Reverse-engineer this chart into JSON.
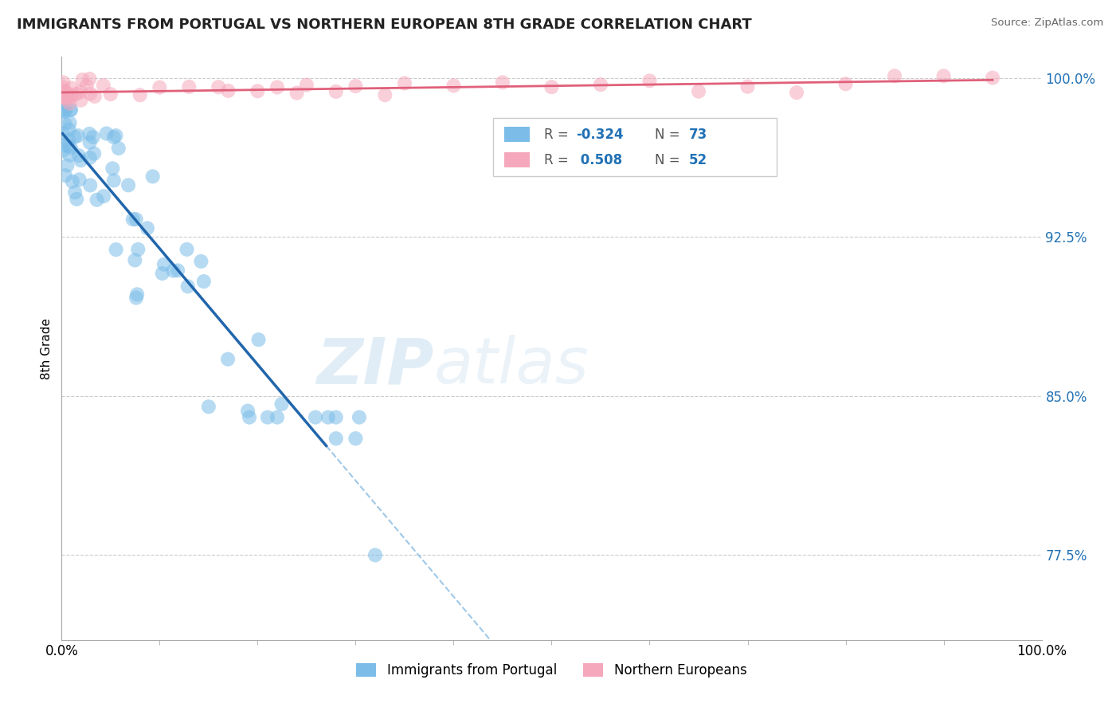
{
  "title": "IMMIGRANTS FROM PORTUGAL VS NORTHERN EUROPEAN 8TH GRADE CORRELATION CHART",
  "source": "Source: ZipAtlas.com",
  "ylabel": "8th Grade",
  "ytick_vals": [
    1.0,
    0.925,
    0.85,
    0.775
  ],
  "ytick_labels": [
    "100.0%",
    "92.5%",
    "85.0%",
    "77.5%"
  ],
  "xlim": [
    0.0,
    1.0
  ],
  "ylim": [
    0.735,
    1.01
  ],
  "blue_color": "#7bbde8",
  "pink_color": "#f5a8bc",
  "blue_line_color": "#2166ac",
  "pink_line_color": "#e0607a",
  "dashed_line_color": "#9ec8e8",
  "watermark_zip": "ZIP",
  "watermark_atlas": "atlas",
  "legend_box_color": "#f5a8bc",
  "legend_box_color_blue": "#7bbde8",
  "r1_val": "-0.324",
  "n1_val": "73",
  "r2_val": "0.508",
  "n2_val": "52",
  "blue_label": "Immigrants from Portugal",
  "pink_label": "Northern Europeans"
}
